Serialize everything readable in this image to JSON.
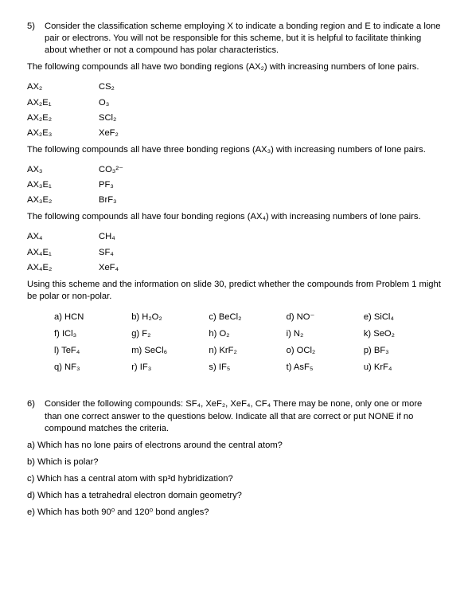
{
  "q5": {
    "number": "5)",
    "prompt": "Consider the classification scheme employing X to indicate a bonding region and E to indicate a lone pair or electrons. You will not be responsible for this scheme, but it is helpful to facilitate thinking about whether or not a compound has polar characteristics.",
    "intro2": "The following compounds all have two bonding regions (AX₂) with increasing numbers of lone pairs.",
    "group2": [
      {
        "ax": "AX₂",
        "ex": "CS₂"
      },
      {
        "ax": "AX₂E₁",
        "ex": "O₃"
      },
      {
        "ax": "AX₂E₂",
        "ex": "SCl₂"
      },
      {
        "ax": "AX₂E₃",
        "ex": "XeF₂"
      }
    ],
    "intro3": "The following compounds all have three bonding regions (AX₃) with increasing numbers of lone pairs.",
    "group3": [
      {
        "ax": "AX₃",
        "ex": "CO₃²⁻"
      },
      {
        "ax": "AX₃E₁",
        "ex": "PF₃"
      },
      {
        "ax": "AX₃E₂",
        "ex": "BrF₃"
      }
    ],
    "intro4": "The following compounds all have four bonding regions (AX₄) with increasing numbers of lone pairs.",
    "group4": [
      {
        "ax": "AX₄",
        "ex": "CH₄"
      },
      {
        "ax": "AX₄E₁",
        "ex": "SF₄"
      },
      {
        "ax": "AX₄E₂",
        "ex": "XeF₄"
      }
    ],
    "predict": "Using this scheme and the information on slide 30, predict whether the compounds from Problem 1 might be polar or non-polar.",
    "compounds": [
      [
        "a) HCN",
        "b) H₂O₂",
        "c) BeCl₂",
        "d) NO⁻",
        "e) SiCl₄"
      ],
      [
        "f) ICl₃",
        "g) F₂",
        "h) O₂",
        "i) N₂",
        "k) SeO₂"
      ],
      [
        "l) TeF₄",
        "m) SeCl₆",
        "n) KrF₂",
        "o) OCl₂",
        "p) BF₃"
      ],
      [
        "q) NF₃",
        "r) IF₃",
        "s) IF₅",
        "t) AsF₅",
        "u) KrF₄"
      ]
    ]
  },
  "q6": {
    "number": "6)",
    "prompt": "Consider the following compounds: SF₄, XeF₂, XeF₄, CF₄ There may be none, only one or more than one correct answer to the questions below. Indicate all that are correct or put NONE if no compound matches the criteria.",
    "subs": [
      "a) Which has no lone pairs of electrons around the central atom?",
      "b) Which is polar?",
      "c) Which has a central atom with sp³d hybridization?",
      "d) Which has a tetrahedral electron domain geometry?",
      "e) Which has both 90⁰ and 120⁰ bond angles?"
    ]
  }
}
